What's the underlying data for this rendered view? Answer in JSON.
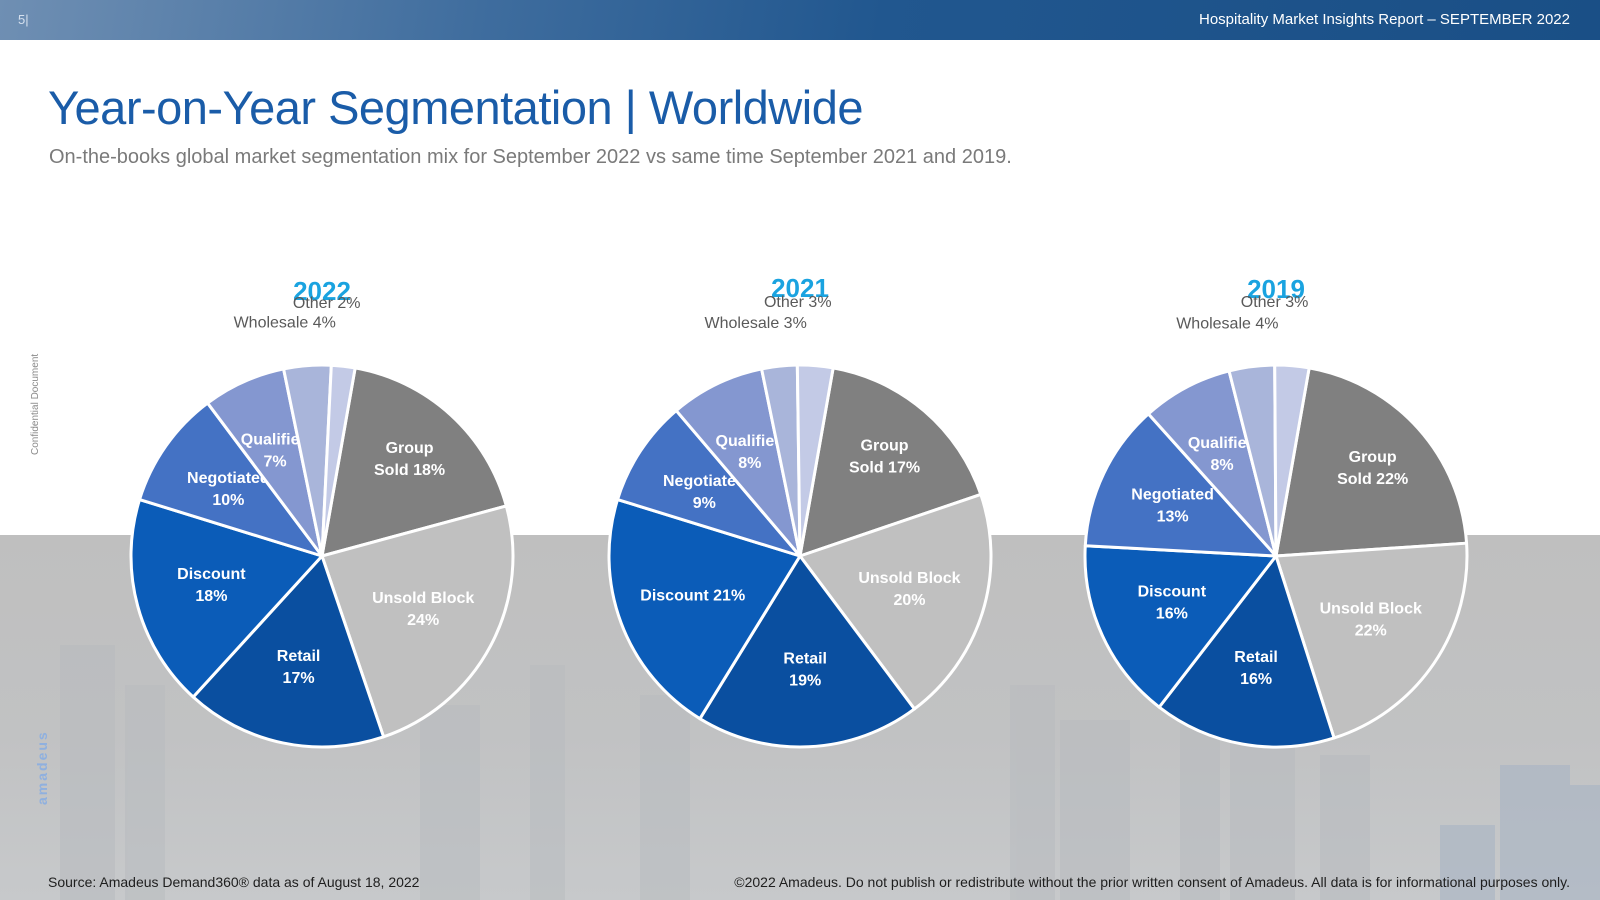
{
  "header": {
    "page_number": "5|",
    "report_title": "Hospitality Market Insights Report – SEPTEMBER 2022"
  },
  "title": "Year-on-Year Segmentation | Worldwide",
  "subtitle": "On-the-books global market segmentation mix for September 2022 vs same time September 2021 and 2019.",
  "side": {
    "confidential": "Confidential Document",
    "brand": "amadeus"
  },
  "footer": {
    "source": "Source: Amadeus Demand360® data as of August 18, 2022",
    "copyright": "©2022 Amadeus. Do not publish or redistribute without the prior written consent of Amadeus. All data is for informational purposes only."
  },
  "colors": {
    "title_blue": "#1a5ca8",
    "year_title": "#1aa3e0",
    "group_sold": "#808080",
    "unsold_block": "#c0c0c0",
    "retail": "#0a4fa0",
    "discount": "#0b5cb8",
    "negotiated": "#4472c4",
    "qualified": "#8497d0",
    "wholesale": "#a9b5da",
    "other": "#c3cae6"
  },
  "chart_data": [
    {
      "type": "pie",
      "title": "2022",
      "slices": [
        {
          "label": "Group Sold",
          "label_lines": [
            "Group",
            "Sold 18%"
          ],
          "value": 18,
          "color_key": "group_sold"
        },
        {
          "label": "Unsold Block",
          "label_lines": [
            "Unsold Block",
            "24%"
          ],
          "value": 24,
          "color_key": "unsold_block"
        },
        {
          "label": "Retail",
          "label_lines": [
            "Retail",
            "17%"
          ],
          "value": 17,
          "color_key": "retail"
        },
        {
          "label": "Discount",
          "label_lines": [
            "Discount",
            "18%"
          ],
          "value": 18,
          "color_key": "discount"
        },
        {
          "label": "Negotiated",
          "label_lines": [
            "Negotiated",
            "10%"
          ],
          "value": 10,
          "color_key": "negotiated"
        },
        {
          "label": "Qualified",
          "label_lines": [
            "Qualified",
            "7%"
          ],
          "value": 7,
          "color_key": "qualified"
        },
        {
          "label": "Wholesale",
          "label_lines": [
            "Wholesale 4%"
          ],
          "value": 4,
          "color_key": "wholesale"
        },
        {
          "label": "Other",
          "label_lines": [
            "Other 2%"
          ],
          "value": 2,
          "color_key": "other"
        }
      ]
    },
    {
      "type": "pie",
      "title": "2021",
      "slices": [
        {
          "label": "Group Sold",
          "label_lines": [
            "Group",
            "Sold 17%"
          ],
          "value": 17,
          "color_key": "group_sold"
        },
        {
          "label": "Unsold Block",
          "label_lines": [
            "Unsold Block",
            "20%"
          ],
          "value": 20,
          "color_key": "unsold_block"
        },
        {
          "label": "Retail",
          "label_lines": [
            "Retail",
            "19%"
          ],
          "value": 19,
          "color_key": "retail"
        },
        {
          "label": "Discount",
          "label_lines": [
            "Discount 21%"
          ],
          "value": 21,
          "color_key": "discount"
        },
        {
          "label": "Negotiated",
          "label_lines": [
            "Negotiated",
            "9%"
          ],
          "value": 9,
          "color_key": "negotiated"
        },
        {
          "label": "Qualified",
          "label_lines": [
            "Qualified",
            "8%"
          ],
          "value": 8,
          "color_key": "qualified"
        },
        {
          "label": "Wholesale",
          "label_lines": [
            "Wholesale 3%"
          ],
          "value": 3,
          "color_key": "wholesale"
        },
        {
          "label": "Other",
          "label_lines": [
            "Other 3%"
          ],
          "value": 3,
          "color_key": "other"
        }
      ]
    },
    {
      "type": "pie",
      "title": "2019",
      "slices": [
        {
          "label": "Group Sold",
          "label_lines": [
            "Group",
            "Sold 22%"
          ],
          "value": 22,
          "color_key": "group_sold"
        },
        {
          "label": "Unsold Block",
          "label_lines": [
            "Unsold Block",
            "22%"
          ],
          "value": 22,
          "color_key": "unsold_block"
        },
        {
          "label": "Retail",
          "label_lines": [
            "Retail",
            "16%"
          ],
          "value": 16,
          "color_key": "retail"
        },
        {
          "label": "Discount",
          "label_lines": [
            "Discount",
            "16%"
          ],
          "value": 16,
          "color_key": "discount"
        },
        {
          "label": "Negotiated",
          "label_lines": [
            "Negotiated",
            "13%"
          ],
          "value": 13,
          "color_key": "negotiated"
        },
        {
          "label": "Qualified",
          "label_lines": [
            "Qualified",
            "8%"
          ],
          "value": 8,
          "color_key": "qualified"
        },
        {
          "label": "Wholesale",
          "label_lines": [
            "Wholesale 4%"
          ],
          "value": 4,
          "color_key": "wholesale"
        },
        {
          "label": "Other",
          "label_lines": [
            "Other 3%"
          ],
          "value": 3,
          "color_key": "other"
        }
      ]
    }
  ]
}
